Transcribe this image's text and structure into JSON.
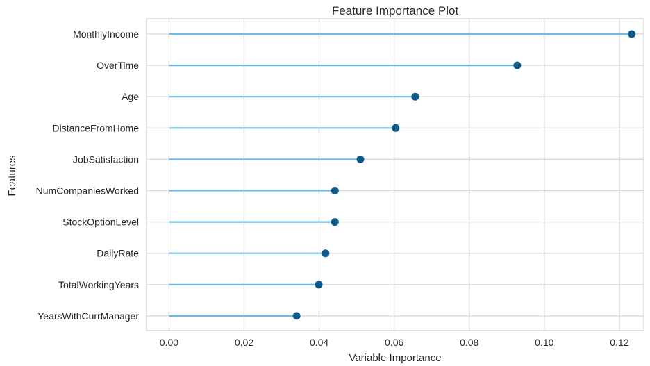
{
  "chart_data": {
    "type": "lollipop",
    "title": "Feature Importance Plot",
    "xlabel": "Variable Importance",
    "ylabel": "Features",
    "xlim": [
      -0.006,
      0.1265
    ],
    "xticks": [
      0.0,
      0.02,
      0.04,
      0.06,
      0.08,
      0.1,
      0.12
    ],
    "xtick_labels": [
      "0.00",
      "0.02",
      "0.04",
      "0.06",
      "0.08",
      "0.10",
      "0.12"
    ],
    "grid": true,
    "categories": [
      "MonthlyIncome",
      "OverTime",
      "Age",
      "DistanceFromHome",
      "JobSatisfaction",
      "NumCompaniesWorked",
      "StockOptionLevel",
      "DailyRate",
      "TotalWorkingYears",
      "YearsWithCurrManager"
    ],
    "values": [
      0.1233,
      0.0928,
      0.0656,
      0.0604,
      0.051,
      0.0442,
      0.0442,
      0.0417,
      0.0399,
      0.034
    ],
    "stem_color": "#6BBCE6",
    "marker_color": "#0E5A8A"
  }
}
